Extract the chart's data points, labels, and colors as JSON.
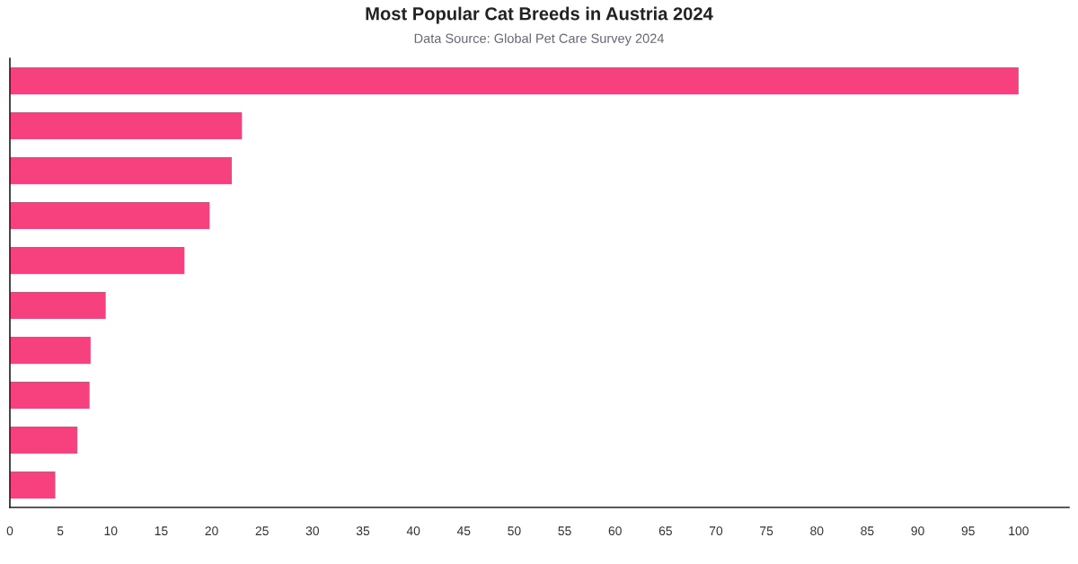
{
  "chart_data": {
    "type": "bar",
    "orientation": "horizontal",
    "title": "Most Popular Cat Breeds in Austria 2024",
    "subtitle": "Data Source: Global Pet Care Survey 2024",
    "categories": [
      null,
      null,
      null,
      null,
      null,
      null,
      null,
      null,
      null,
      null
    ],
    "values": [
      100,
      23.0,
      22.0,
      19.8,
      17.3,
      9.5,
      8.0,
      7.9,
      6.7,
      4.5
    ],
    "color": "#f7417f",
    "xlim": [
      0,
      105
    ],
    "xticks": [
      0,
      5,
      10,
      15,
      20,
      25,
      30,
      35,
      40,
      45,
      50,
      55,
      60,
      65,
      70,
      75,
      80,
      85,
      90,
      95,
      100
    ],
    "tick_labels": "x",
    "grid": false
  }
}
